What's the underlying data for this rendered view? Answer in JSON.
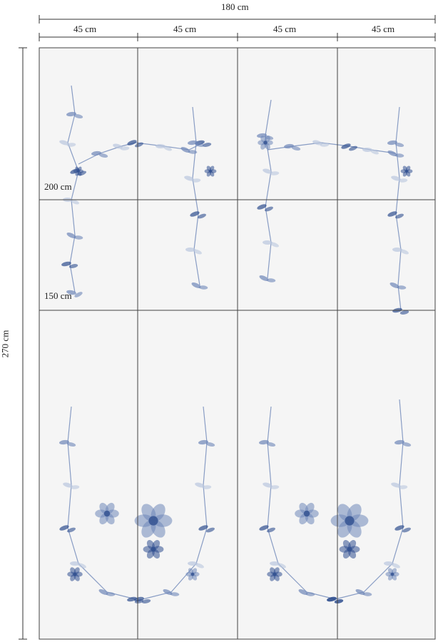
{
  "dimensions": {
    "total_width": "180 cm",
    "panel_widths": [
      "45 cm",
      "45 cm",
      "45 cm",
      "45 cm"
    ],
    "total_height": "270 cm",
    "height_marks": [
      "200 cm",
      "150 cm"
    ]
  },
  "colors": {
    "background": "#f5f5f5",
    "lines": "#444444",
    "floral_dark": "#2f4f8f",
    "floral_mid": "#6d86b8",
    "floral_light": "#b9c6de"
  }
}
